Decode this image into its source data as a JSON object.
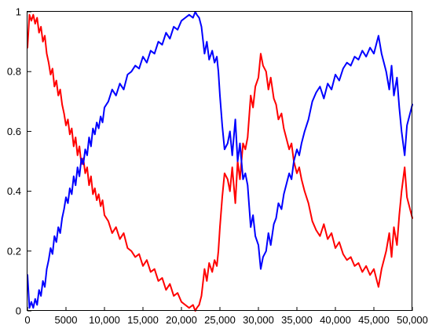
{
  "chart_data": {
    "type": "line",
    "title": "",
    "xlabel": "",
    "ylabel": "",
    "xlim": [
      0,
      50000
    ],
    "ylim": [
      0,
      1
    ],
    "grid": false,
    "x_ticks": [
      0,
      5000,
      10000,
      15000,
      20000,
      25000,
      30000,
      35000,
      40000,
      45000,
      50000
    ],
    "x_tick_labels": [
      "0",
      "5000",
      "10,000",
      "15,000",
      "20,000",
      "25,000",
      "30,000",
      "35,000",
      "40,000",
      "45,000",
      "50,000"
    ],
    "y_ticks": [
      0,
      0.2,
      0.4,
      0.6,
      0.8,
      1
    ],
    "y_tick_labels": [
      "0",
      "0.2",
      "0.4",
      "0.6",
      "0.8",
      "1"
    ],
    "series": [
      {
        "color": "#ff0000",
        "x": [
          0,
          250,
          500,
          750,
          1000,
          1250,
          1500,
          1750,
          2000,
          2250,
          2500,
          2750,
          3000,
          3250,
          3500,
          3750,
          4000,
          4250,
          4500,
          4750,
          5000,
          5250,
          5500,
          5750,
          6000,
          6250,
          6500,
          6750,
          7000,
          7250,
          7500,
          7750,
          8000,
          8250,
          8500,
          8750,
          9000,
          9250,
          9500,
          9750,
          10000,
          10500,
          11000,
          11500,
          12000,
          12500,
          13000,
          13500,
          14000,
          14500,
          15000,
          15500,
          16000,
          16500,
          17000,
          17500,
          18000,
          18500,
          19000,
          19500,
          20000,
          20500,
          21000,
          21500,
          21800,
          22000,
          22300,
          22600,
          23000,
          23300,
          23600,
          24000,
          24300,
          24600,
          24800,
          25000,
          25300,
          25600,
          26000,
          26300,
          26600,
          27000,
          27300,
          27600,
          28000,
          28300,
          28600,
          29000,
          29300,
          29600,
          30000,
          30300,
          30600,
          31000,
          31300,
          31600,
          32000,
          32300,
          32600,
          33000,
          33300,
          33600,
          34000,
          34300,
          34600,
          35000,
          35300,
          35600,
          36000,
          36500,
          37000,
          37500,
          38000,
          38500,
          39000,
          39500,
          40000,
          40500,
          41000,
          41500,
          42000,
          42500,
          43000,
          43500,
          44000,
          44500,
          45000,
          45300,
          45600,
          46000,
          46300,
          46600,
          47000,
          47300,
          47600,
          48000,
          48300,
          48600,
          49000,
          49300,
          49600,
          50000
        ],
        "y": [
          0.88,
          0.99,
          0.97,
          0.99,
          0.96,
          0.98,
          0.93,
          0.95,
          0.9,
          0.92,
          0.86,
          0.83,
          0.79,
          0.81,
          0.75,
          0.77,
          0.72,
          0.74,
          0.69,
          0.66,
          0.62,
          0.64,
          0.59,
          0.61,
          0.55,
          0.58,
          0.52,
          0.55,
          0.49,
          0.51,
          0.46,
          0.48,
          0.42,
          0.45,
          0.39,
          0.41,
          0.37,
          0.39,
          0.35,
          0.37,
          0.32,
          0.3,
          0.26,
          0.28,
          0.24,
          0.26,
          0.21,
          0.2,
          0.18,
          0.19,
          0.15,
          0.17,
          0.13,
          0.14,
          0.1,
          0.11,
          0.07,
          0.09,
          0.05,
          0.06,
          0.03,
          0.02,
          0.01,
          0.02,
          0.0,
          0.01,
          0.02,
          0.05,
          0.14,
          0.1,
          0.16,
          0.13,
          0.17,
          0.15,
          0.2,
          0.28,
          0.38,
          0.46,
          0.44,
          0.4,
          0.48,
          0.36,
          0.5,
          0.44,
          0.56,
          0.54,
          0.58,
          0.72,
          0.68,
          0.75,
          0.78,
          0.86,
          0.82,
          0.8,
          0.74,
          0.78,
          0.71,
          0.69,
          0.64,
          0.66,
          0.61,
          0.58,
          0.54,
          0.56,
          0.5,
          0.46,
          0.48,
          0.44,
          0.4,
          0.36,
          0.3,
          0.27,
          0.25,
          0.29,
          0.24,
          0.26,
          0.21,
          0.23,
          0.19,
          0.17,
          0.18,
          0.15,
          0.16,
          0.13,
          0.15,
          0.12,
          0.14,
          0.11,
          0.08,
          0.14,
          0.17,
          0.2,
          0.26,
          0.18,
          0.28,
          0.22,
          0.32,
          0.4,
          0.48,
          0.38,
          0.35,
          0.31
        ]
      },
      {
        "color": "#0000ff",
        "x": [
          0,
          250,
          500,
          750,
          1000,
          1250,
          1500,
          1750,
          2000,
          2250,
          2500,
          2750,
          3000,
          3250,
          3500,
          3750,
          4000,
          4250,
          4500,
          4750,
          5000,
          5250,
          5500,
          5750,
          6000,
          6250,
          6500,
          6750,
          7000,
          7250,
          7500,
          7750,
          8000,
          8250,
          8500,
          8750,
          9000,
          9250,
          9500,
          9750,
          10000,
          10500,
          11000,
          11500,
          12000,
          12500,
          13000,
          13500,
          14000,
          14500,
          15000,
          15500,
          16000,
          16500,
          17000,
          17500,
          18000,
          18500,
          19000,
          19500,
          20000,
          20500,
          21000,
          21500,
          21800,
          22000,
          22300,
          22600,
          23000,
          23300,
          23600,
          24000,
          24300,
          24600,
          24800,
          25000,
          25300,
          25600,
          26000,
          26300,
          26600,
          27000,
          27300,
          27600,
          28000,
          28300,
          28600,
          29000,
          29300,
          29600,
          30000,
          30300,
          30600,
          31000,
          31300,
          31600,
          32000,
          32300,
          32600,
          33000,
          33300,
          33600,
          34000,
          34300,
          34600,
          35000,
          35300,
          35600,
          36000,
          36500,
          37000,
          37500,
          38000,
          38500,
          39000,
          39500,
          40000,
          40500,
          41000,
          41500,
          42000,
          42500,
          43000,
          43500,
          44000,
          44500,
          45000,
          45300,
          45600,
          46000,
          46300,
          46600,
          47000,
          47300,
          47600,
          48000,
          48300,
          48600,
          49000,
          49300,
          49600,
          50000
        ],
        "y": [
          0.12,
          0.01,
          0.03,
          0.01,
          0.04,
          0.02,
          0.07,
          0.05,
          0.1,
          0.08,
          0.14,
          0.17,
          0.21,
          0.19,
          0.25,
          0.23,
          0.28,
          0.26,
          0.31,
          0.34,
          0.38,
          0.36,
          0.41,
          0.39,
          0.45,
          0.42,
          0.48,
          0.45,
          0.51,
          0.49,
          0.54,
          0.52,
          0.58,
          0.55,
          0.61,
          0.59,
          0.63,
          0.61,
          0.65,
          0.63,
          0.68,
          0.7,
          0.74,
          0.72,
          0.76,
          0.74,
          0.79,
          0.8,
          0.82,
          0.81,
          0.85,
          0.83,
          0.87,
          0.86,
          0.9,
          0.89,
          0.93,
          0.91,
          0.95,
          0.94,
          0.97,
          0.98,
          0.99,
          0.98,
          1.0,
          0.99,
          0.98,
          0.95,
          0.86,
          0.9,
          0.84,
          0.87,
          0.83,
          0.85,
          0.8,
          0.72,
          0.62,
          0.54,
          0.56,
          0.6,
          0.52,
          0.64,
          0.5,
          0.56,
          0.44,
          0.46,
          0.42,
          0.28,
          0.32,
          0.25,
          0.22,
          0.14,
          0.18,
          0.2,
          0.26,
          0.22,
          0.29,
          0.31,
          0.36,
          0.34,
          0.39,
          0.42,
          0.46,
          0.44,
          0.5,
          0.54,
          0.52,
          0.56,
          0.6,
          0.64,
          0.7,
          0.73,
          0.75,
          0.71,
          0.76,
          0.74,
          0.79,
          0.77,
          0.81,
          0.83,
          0.82,
          0.85,
          0.84,
          0.87,
          0.85,
          0.88,
          0.86,
          0.89,
          0.92,
          0.86,
          0.83,
          0.8,
          0.74,
          0.82,
          0.72,
          0.78,
          0.68,
          0.6,
          0.52,
          0.62,
          0.65,
          0.69
        ]
      }
    ]
  }
}
